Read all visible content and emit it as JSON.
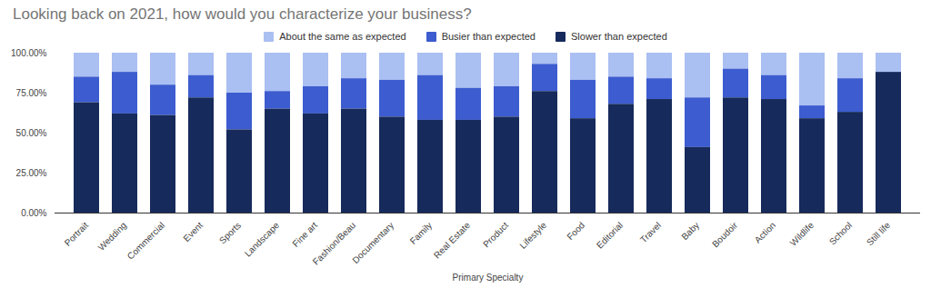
{
  "chart_data": {
    "type": "bar",
    "title": "Looking back on 2021, how would you characterize your business?",
    "x_label": "Primary Specialty",
    "stacked": true,
    "grid": false,
    "legend": "top",
    "categories": [
      "Portrait",
      "Wedding",
      "Commercial",
      "Event",
      "Sports",
      "Landscape",
      "Fine art",
      "Fashion/Beau",
      "Documentary",
      "Family",
      "Real Estate",
      "Product",
      "Lifestyle",
      "Food",
      "Editorial",
      "Travel",
      "Baby",
      "Boudoir",
      "Action",
      "Wildlife",
      "School",
      "Still life"
    ],
    "series": [
      {
        "name": "About the same as expected",
        "color": "#aabff2",
        "values": [
          15,
          12,
          20,
          14,
          25,
          24,
          21,
          16,
          17,
          14,
          22,
          21,
          7,
          17,
          15,
          16,
          28,
          10,
          14,
          33,
          16,
          12
        ]
      },
      {
        "name": "Busier than expected",
        "color": "#3c5ccf",
        "values": [
          16,
          26,
          19,
          14,
          23,
          11,
          17,
          19,
          23,
          28,
          20,
          19,
          17,
          24,
          17,
          13,
          31,
          18,
          15,
          8,
          21,
          0
        ]
      },
      {
        "name": "Slower than expected",
        "color": "#172a5c",
        "values": [
          69,
          62,
          61,
          72,
          52,
          65,
          62,
          65,
          60,
          58,
          58,
          60,
          76,
          59,
          68,
          71,
          41,
          72,
          71,
          59,
          63,
          88
        ]
      }
    ],
    "ylim": [
      0,
      100
    ],
    "yticks": [
      {
        "value": 0,
        "label": "0.00%"
      },
      {
        "value": 25,
        "label": "25.00%"
      },
      {
        "value": 50,
        "label": "50.00%"
      },
      {
        "value": 75,
        "label": "75.00%"
      },
      {
        "value": 100,
        "label": "100.00%"
      }
    ]
  }
}
